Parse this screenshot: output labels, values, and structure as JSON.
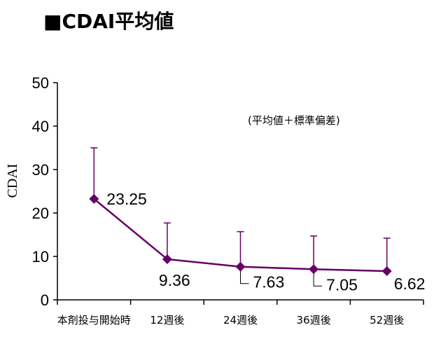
{
  "chart_data": {
    "type": "line",
    "title": "■CDAI平均値",
    "ylabel": "CDAI",
    "xlabel": "",
    "note": "(平均値＋標準偏差)",
    "categories": [
      "本剤投与開始時",
      "12週後",
      "24週後",
      "36週後",
      "52週後"
    ],
    "series": [
      {
        "values": [
          23.25,
          9.36,
          7.63,
          7.05,
          6.62
        ],
        "error_plus": [
          11.75,
          8.34,
          8.07,
          7.65,
          7.58
        ]
      }
    ],
    "data_labels": [
      "23.25",
      "9.36",
      "7.63",
      "7.05",
      "6.62"
    ],
    "ylim": [
      0,
      50
    ],
    "yticks": [
      0,
      10,
      20,
      30,
      40,
      50
    ],
    "grid": false,
    "legend": "none",
    "colors": {
      "series": "#660066",
      "axis": "#000000"
    }
  }
}
